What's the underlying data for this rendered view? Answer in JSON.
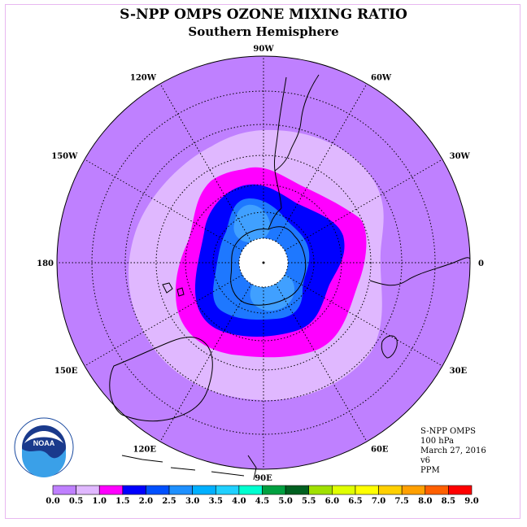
{
  "header": {
    "title": "S-NPP OMPS OZONE MIXING RATIO",
    "subtitle": "Southern Hemisphere"
  },
  "map": {
    "longitude_labels": [
      {
        "text": "90W",
        "lon": -90
      },
      {
        "text": "60W",
        "lon": -60
      },
      {
        "text": "30W",
        "lon": -30
      },
      {
        "text": "0",
        "lon": 0
      },
      {
        "text": "30E",
        "lon": 30
      },
      {
        "text": "60E",
        "lon": 60
      },
      {
        "text": "90E",
        "lon": 90
      },
      {
        "text": "120E",
        "lon": 120
      },
      {
        "text": "150E",
        "lon": 150
      },
      {
        "text": "180",
        "lon": 180
      },
      {
        "text": "150W",
        "lon": -150
      },
      {
        "text": "120W",
        "lon": -120
      }
    ],
    "background_color": "#bf80ff",
    "no_data_color": "#ffffff"
  },
  "info": {
    "instrument": "S-NPP OMPS",
    "level": "100 hPa",
    "date": "March 27, 2016",
    "version": "v6",
    "units": "PPM"
  },
  "logo": {
    "text": "NOAA"
  },
  "colorbar": {
    "labels": [
      "0.0",
      "0.5",
      "1.0",
      "1.5",
      "2.0",
      "2.5",
      "3.0",
      "3.5",
      "4.0",
      "4.5",
      "5.0",
      "5.5",
      "6.0",
      "6.5",
      "7.0",
      "7.5",
      "8.0",
      "8.5",
      "9.0"
    ],
    "colors": [
      "#bf80ff",
      "#e0b8ff",
      "#ff00ff",
      "#0000ff",
      "#0050ff",
      "#1e90ff",
      "#00b0ff",
      "#20d0ff",
      "#00ffd0",
      "#00a040",
      "#006020",
      "#a0e000",
      "#e0ff00",
      "#ffff00",
      "#ffd000",
      "#ffa000",
      "#ff6000",
      "#ff0000",
      "#804020"
    ]
  }
}
